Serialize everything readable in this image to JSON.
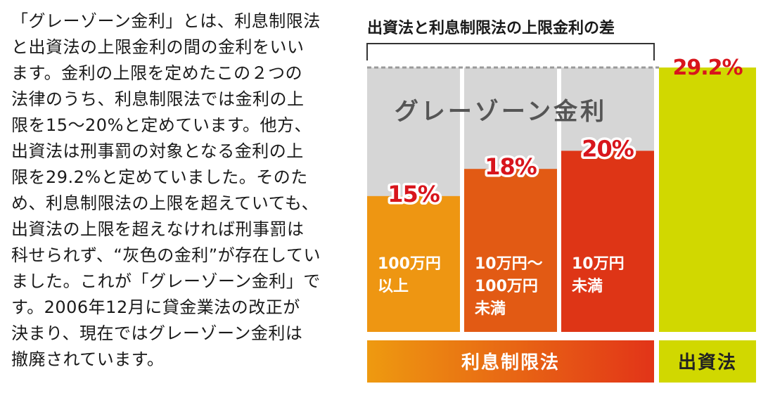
{
  "article": {
    "lines": [
      "「グレーゾーン金利」とは、利息制限法",
      "と出資法の上限金利の間の金利をいい",
      "ます。金利の上限を定めたこの２つの",
      "法律のうち、利息制限法では金利の上",
      "限を15～20%と定めています。他方、",
      "出資法は刑事罰の対象となる金利の上",
      "限を29.2%と定めていました。そのた",
      "め、利息制限法の上限を超えていても、",
      "出資法の上限を超えなければ刑事罰は",
      "科せられず、“灰色の金利”が存在してい",
      "ました。これが「グレーゾーン金利」で",
      "す。2006年12月に貸金業法の改正が",
      "決まり、現在ではグレーゾーン金利は",
      "撤廃されています。"
    ]
  },
  "chart_data": {
    "type": "bar",
    "title": "出資法と利息制限法の上限金利の差",
    "unit": "%",
    "ylim": [
      0,
      29.2
    ],
    "gray_zone_label": "グレーゾーン金利",
    "groups": [
      {
        "name": "利息制限法",
        "color_from": "#ee9a10",
        "color_to": "#e23418"
      },
      {
        "name": "出資法",
        "color": "#d1d800"
      }
    ],
    "categories": [
      {
        "label_lines": [
          "100万円",
          "以上"
        ],
        "value": 15,
        "value_label": "15%",
        "group": "利息制限法",
        "color": "#ee9612"
      },
      {
        "label_lines": [
          "10万円～",
          "100万円",
          "未満"
        ],
        "value": 18,
        "value_label": "18%",
        "group": "利息制限法",
        "color": "#e25a14"
      },
      {
        "label_lines": [
          "10万円",
          "未満"
        ],
        "value": 20,
        "value_label": "20%",
        "group": "利息制限法",
        "color": "#de3516"
      },
      {
        "label_lines": [],
        "value": 29.2,
        "value_label": "29.2%",
        "group": "出資法",
        "color": "#d1d800"
      }
    ],
    "colors": {
      "gray_zone": "#d6d6d6",
      "dashed_line": "#9a9a9a",
      "value_label_red": "#d8151c",
      "value_label_white": "#ffffff"
    }
  }
}
